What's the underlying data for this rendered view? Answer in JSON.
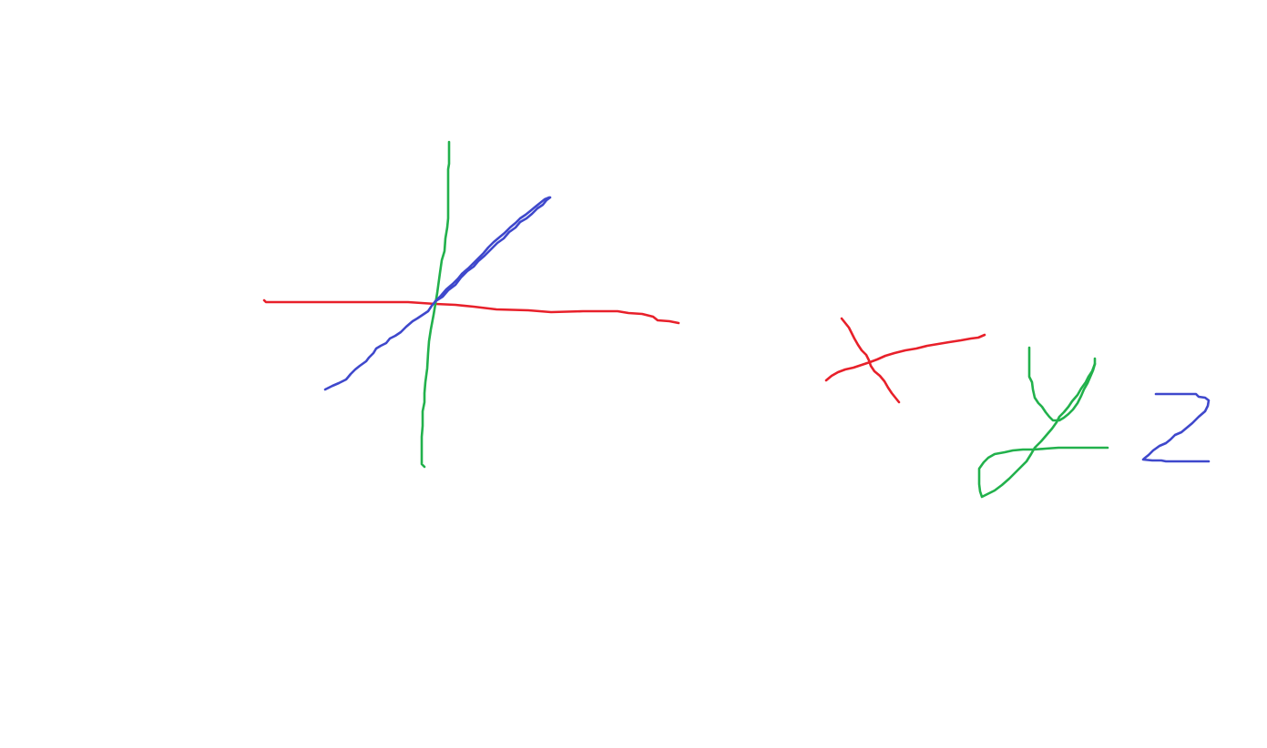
{
  "canvas": {
    "background": "#ffffff"
  },
  "colors": {
    "x_axis": "#e8202a",
    "y_axis": "#22b14c",
    "z_axis": "#3f48cc"
  },
  "diagram": {
    "kind": "hand-drawn 3D coordinate axes with legend letters",
    "legend": [
      {
        "letter": "x",
        "color_key": "x_axis"
      },
      {
        "letter": "y",
        "color_key": "y_axis"
      },
      {
        "letter": "z",
        "color_key": "z_axis"
      }
    ]
  }
}
